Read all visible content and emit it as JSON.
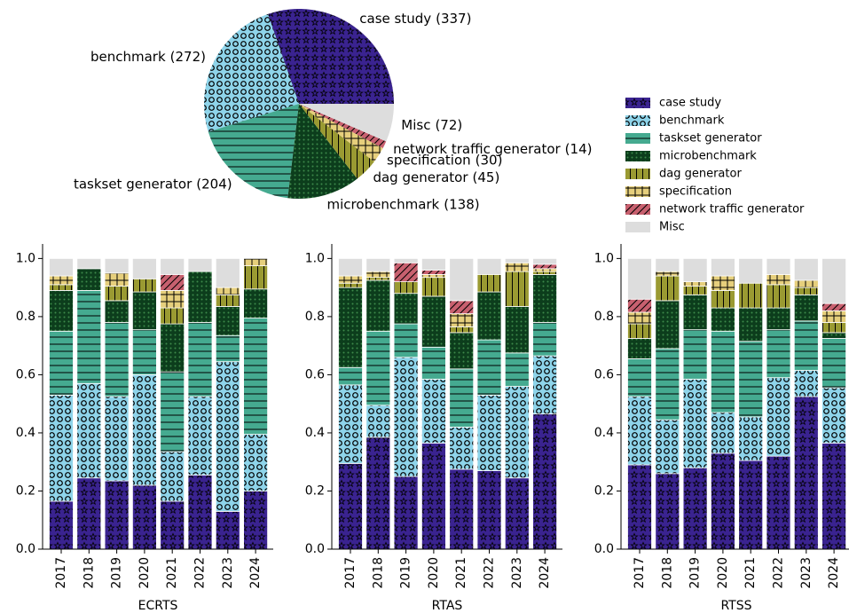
{
  "chart_data": [
    {
      "type": "pie",
      "categories": [
        "case study",
        "benchmark",
        "taskset generator",
        "microbenchmark",
        "dag generator",
        "specification",
        "network traffic generator",
        "Misc"
      ],
      "values": [
        337,
        272,
        204,
        138,
        45,
        30,
        14,
        72
      ],
      "value_labels": [
        "(337)",
        "(272)",
        "(204)",
        "(138)",
        "(45)",
        "(30)",
        "(14)",
        "(72)"
      ],
      "colors": [
        "#3a2390",
        "#8ed4ea",
        "#45aa90",
        "#0c3d1c",
        "#9a9a32",
        "#e6cf7c",
        "#c8606f",
        "#dddddd"
      ],
      "hatches": [
        "*",
        "o",
        "-",
        ".",
        "|",
        "+",
        "/",
        ""
      ],
      "legend": "right"
    },
    {
      "type": "bar",
      "stacked": true,
      "xlabel": "ECRTS",
      "categories": [
        "2017",
        "2018",
        "2019",
        "2020",
        "2021",
        "2022",
        "2023",
        "2024"
      ],
      "series": [
        {
          "values": [
            0.165,
            0.245,
            0.235,
            0.22,
            0.165,
            0.255,
            0.13,
            0.2
          ]
        },
        {
          "values": [
            0.365,
            0.325,
            0.29,
            0.38,
            0.17,
            0.27,
            0.515,
            0.195
          ]
        },
        {
          "values": [
            0.22,
            0.32,
            0.255,
            0.155,
            0.275,
            0.255,
            0.09,
            0.4
          ]
        },
        {
          "values": [
            0.14,
            0.075,
            0.075,
            0.13,
            0.165,
            0.175,
            0.1,
            0.1
          ]
        },
        {
          "values": [
            0.02,
            0,
            0.05,
            0.045,
            0.055,
            0,
            0.04,
            0.08
          ]
        },
        {
          "values": [
            0.03,
            0,
            0.045,
            0,
            0.06,
            0,
            0.025,
            0.025
          ]
        },
        {
          "values": [
            0,
            0,
            0,
            0,
            0.055,
            0,
            0,
            0
          ]
        },
        {
          "values": [
            0.06,
            0.035,
            0.05,
            0.07,
            0.055,
            0.045,
            0.1,
            0
          ]
        }
      ],
      "ylim": [
        0,
        1.05
      ],
      "yticks": [
        {
          "value": 0,
          "label": "0.0"
        },
        0.2,
        0.4,
        0.6,
        0.8,
        {
          "value": 1,
          "label": "1.0"
        }
      ]
    },
    {
      "type": "bar",
      "stacked": true,
      "xlabel": "RTAS",
      "categories": [
        "2017",
        "2018",
        "2019",
        "2020",
        "2021",
        "2022",
        "2023",
        "2024"
      ],
      "series": [
        {
          "values": [
            0.295,
            0.385,
            0.25,
            0.365,
            0.275,
            0.27,
            0.245,
            0.465
          ]
        },
        {
          "values": [
            0.27,
            0.11,
            0.41,
            0.22,
            0.145,
            0.26,
            0.315,
            0.2
          ]
        },
        {
          "values": [
            0.06,
            0.255,
            0.115,
            0.11,
            0.2,
            0.19,
            0.115,
            0.115
          ]
        },
        {
          "values": [
            0.275,
            0.175,
            0.105,
            0.175,
            0.125,
            0.165,
            0.16,
            0.165
          ]
        },
        {
          "values": [
            0.015,
            0.01,
            0.04,
            0.065,
            0.02,
            0.06,
            0.12,
            0.01
          ]
        },
        {
          "values": [
            0.025,
            0.02,
            0,
            0.01,
            0.045,
            0,
            0.03,
            0.01
          ]
        },
        {
          "values": [
            0,
            0,
            0.065,
            0.015,
            0.045,
            0,
            0,
            0.015
          ]
        },
        {
          "values": [
            0.06,
            0.045,
            0.015,
            0.04,
            0.145,
            0.055,
            0.015,
            0.02
          ]
        }
      ],
      "ylim": [
        0,
        1.05
      ],
      "yticks": [
        {
          "value": 0,
          "label": "0.0"
        },
        0.2,
        0.4,
        0.6,
        0.8,
        {
          "value": 1,
          "label": "1.0"
        }
      ]
    },
    {
      "type": "bar",
      "stacked": true,
      "xlabel": "RTSS",
      "categories": [
        "2017",
        "2018",
        "2019",
        "2020",
        "2021",
        "2022",
        "2023",
        "2024"
      ],
      "series": [
        {
          "values": [
            0.29,
            0.26,
            0.28,
            0.33,
            0.305,
            0.32,
            0.525,
            0.365
          ]
        },
        {
          "values": [
            0.235,
            0.185,
            0.305,
            0.14,
            0.15,
            0.27,
            0.09,
            0.19
          ]
        },
        {
          "values": [
            0.13,
            0.245,
            0.17,
            0.28,
            0.26,
            0.165,
            0.17,
            0.17
          ]
        },
        {
          "values": [
            0.07,
            0.165,
            0.12,
            0.08,
            0.115,
            0.075,
            0.09,
            0.02
          ]
        },
        {
          "values": [
            0.05,
            0.085,
            0.03,
            0.06,
            0.085,
            0.08,
            0.025,
            0.035
          ]
        },
        {
          "values": [
            0.04,
            0.015,
            0.015,
            0.05,
            0,
            0.035,
            0.025,
            0.04
          ]
        },
        {
          "values": [
            0.045,
            0,
            0,
            0,
            0,
            0,
            0,
            0.025
          ]
        },
        {
          "values": [
            0.14,
            0.045,
            0.08,
            0.06,
            0.085,
            0.055,
            0.075,
            0.155
          ]
        }
      ],
      "ylim": [
        0,
        1.05
      ],
      "yticks": [
        {
          "value": 0,
          "label": "0.0"
        },
        0.2,
        0.4,
        0.6,
        0.8,
        {
          "value": 1,
          "label": "1.0"
        }
      ]
    }
  ]
}
